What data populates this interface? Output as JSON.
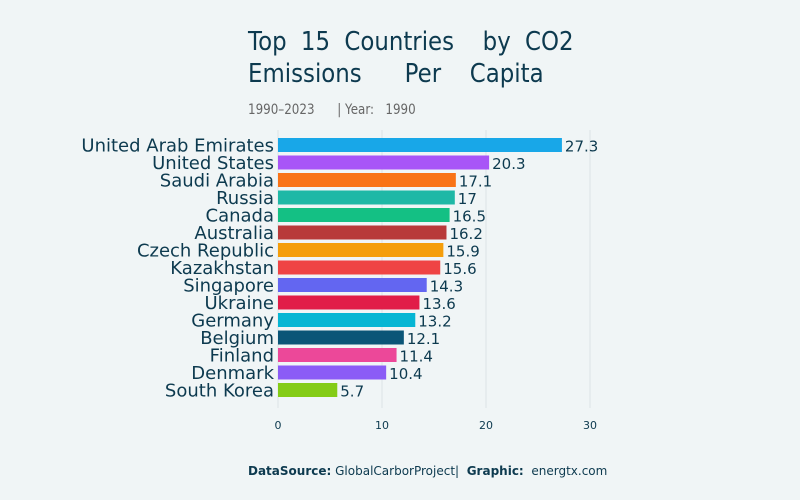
{
  "title_line1": "Top 15 Countries  by CO2",
  "title_line2": "Emissions   Per  Capita",
  "subtitle_range": "1990–2023",
  "subtitle_year_label": "| Year:",
  "subtitle_year": "1990",
  "footer": {
    "source_label": "DataSource:",
    "source": "GlobalCarborProject|",
    "graphic_label": "Graphic:",
    "graphic": "energtx.com"
  },
  "chart_data": {
    "type": "bar",
    "orientation": "horizontal",
    "categories": [
      "United Arab Emirates",
      "United States",
      "Saudi Arabia",
      "Russia",
      "Canada",
      "Australia",
      "Czech Republic",
      "Kazakhstan",
      "Singapore",
      "Ukraine",
      "Germany",
      "Belgium",
      "Finland",
      "Denmark",
      "South Korea"
    ],
    "values": [
      27.3,
      20.3,
      17.1,
      17,
      16.5,
      16.2,
      15.9,
      15.6,
      14.3,
      13.6,
      13.2,
      12.1,
      11.4,
      10.4,
      5.7
    ],
    "colors": [
      "#18a7e8",
      "#a855f7",
      "#f97316",
      "#1fb8a6",
      "#14c084",
      "#b83a3a",
      "#f59e0b",
      "#ef4444",
      "#6366f1",
      "#e11d48",
      "#06b6d4",
      "#0b5577",
      "#ec4899",
      "#8b5cf6",
      "#84cc16"
    ],
    "xticks": [
      0,
      10,
      20,
      30
    ],
    "xlim": [
      0,
      30
    ],
    "grid": true
  }
}
